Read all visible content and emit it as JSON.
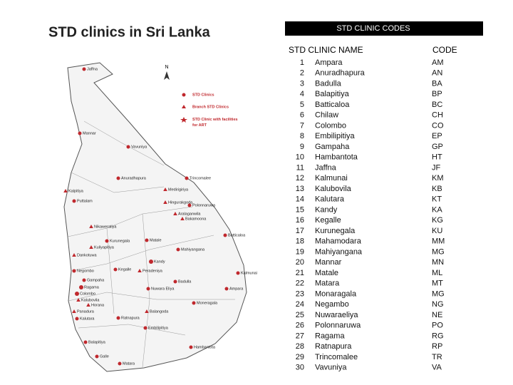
{
  "title": "STD clinics in Sri Lanka",
  "map": {
    "compass": "N",
    "legend": [
      "STD Clinics",
      "Branch STD Clinics",
      "STD Clinic with facilities for ART"
    ],
    "labels": [
      "Jaffna",
      "Mannar",
      "Vavuniya",
      "Anuradhapura",
      "Kalpitiya",
      "Puttalam",
      "Medirigiriya",
      "Trincomalee",
      "Hingurakgoda",
      "Polonnaruwa",
      "Aralaganwila",
      "Bakamoona",
      "Nikaweratiya",
      "Kurunegala",
      "Kuliyapitiya",
      "Matale",
      "Mahiyangana",
      "Batticaloa",
      "Dankotuwa",
      "Negombo",
      "Kegalle",
      "Kandy",
      "Peradeniya",
      "Gampaha",
      "Ragama",
      "Colombo",
      "Kalubovila",
      "Badulla",
      "Nuwara Eliya",
      "Kalmunai",
      "Ampara",
      "Moneragala",
      "Horana",
      "Panadura",
      "Kalutara",
      "Balangoda",
      "Ratnapura",
      "Embilipitiya",
      "Hambantota",
      "Balapitiya",
      "Galle",
      "Matara"
    ]
  },
  "table": {
    "caption": "STD CLINIC CODES",
    "header": [
      "STD CLINIC NAME",
      "CODE"
    ],
    "rows": [
      [
        1,
        "Ampara",
        "AM"
      ],
      [
        2,
        "Anuradhapura",
        "AN"
      ],
      [
        3,
        "Badulla",
        "BA"
      ],
      [
        4,
        "Balapitiya",
        "BP"
      ],
      [
        5,
        "Batticaloa",
        "BC"
      ],
      [
        6,
        "Chilaw",
        "CH"
      ],
      [
        7,
        "Colombo",
        "CO"
      ],
      [
        8,
        "Embilipitiya",
        "EP"
      ],
      [
        9,
        "Gampaha",
        "GP"
      ],
      [
        10,
        "Hambantota",
        "HT"
      ],
      [
        11,
        "Jaffna",
        "JF"
      ],
      [
        12,
        "Kalmunai",
        "KM"
      ],
      [
        13,
        "Kalubovila",
        "KB"
      ],
      [
        14,
        "Kalutara",
        "KT"
      ],
      [
        15,
        "Kandy",
        "KA"
      ],
      [
        16,
        "Kegalle",
        "KG"
      ],
      [
        17,
        "Kurunegala",
        "KU"
      ],
      [
        18,
        "Mahamodara",
        "MM"
      ],
      [
        19,
        "Mahiyangana",
        "MG"
      ],
      [
        20,
        "Mannar",
        "MN"
      ],
      [
        21,
        "Matale",
        "ML"
      ],
      [
        22,
        "Matara",
        "MT"
      ],
      [
        23,
        "Monaragala",
        "MG"
      ],
      [
        24,
        "Negambo",
        "NG"
      ],
      [
        25,
        "Nuwaraeliya",
        "NE"
      ],
      [
        26,
        "Polonnaruwa",
        "PO"
      ],
      [
        27,
        "Ragama",
        "RG"
      ],
      [
        28,
        "Ratnapura",
        "RP"
      ],
      [
        29,
        "Trincomalee",
        "TR"
      ],
      [
        30,
        "Vavuniya",
        "VA"
      ]
    ]
  }
}
